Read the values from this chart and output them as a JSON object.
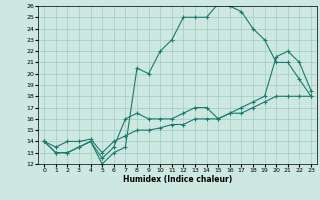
{
  "xlabel": "Humidex (Indice chaleur)",
  "xlim": [
    -0.5,
    23.5
  ],
  "ylim": [
    12,
    26
  ],
  "xticks": [
    0,
    1,
    2,
    3,
    4,
    5,
    6,
    7,
    8,
    9,
    10,
    11,
    12,
    13,
    14,
    15,
    16,
    17,
    18,
    19,
    20,
    21,
    22,
    23
  ],
  "yticks": [
    12,
    13,
    14,
    15,
    16,
    17,
    18,
    19,
    20,
    21,
    22,
    23,
    24,
    25,
    26
  ],
  "line_color": "#1a7a6e",
  "bg_color": "#cce8e0",
  "grid_color": "#a0ccc4",
  "line1_x": [
    0,
    1,
    2,
    3,
    4,
    5,
    6,
    7,
    8,
    9,
    10,
    11,
    12,
    13,
    14,
    15,
    16,
    17,
    18,
    19,
    20,
    21,
    22,
    23
  ],
  "line1_y": [
    14,
    13,
    13,
    13.5,
    14,
    12,
    13,
    13.5,
    20.5,
    20,
    22,
    23,
    25,
    25,
    25,
    26.2,
    26,
    25.5,
    24,
    23,
    21,
    21,
    19.5,
    18
  ],
  "line2_x": [
    0,
    1,
    2,
    3,
    4,
    5,
    6,
    7,
    8,
    9,
    10,
    11,
    12,
    13,
    14,
    15,
    16,
    17,
    18,
    19,
    20,
    21,
    22,
    23
  ],
  "line2_y": [
    14,
    13,
    13,
    13.5,
    14,
    12.5,
    13.5,
    16,
    16.5,
    16,
    16,
    16,
    16.5,
    17,
    17,
    16,
    16.5,
    17,
    17.5,
    18,
    21.5,
    22,
    21,
    18.5
  ],
  "line3_x": [
    0,
    1,
    2,
    3,
    4,
    5,
    6,
    7,
    8,
    9,
    10,
    11,
    12,
    13,
    14,
    15,
    16,
    17,
    18,
    19,
    20,
    21,
    22,
    23
  ],
  "line3_y": [
    14,
    13.5,
    14,
    14,
    14.2,
    13,
    14,
    14.5,
    15,
    15,
    15.2,
    15.5,
    15.5,
    16,
    16,
    16,
    16.5,
    16.5,
    17,
    17.5,
    18,
    18,
    18,
    18
  ]
}
